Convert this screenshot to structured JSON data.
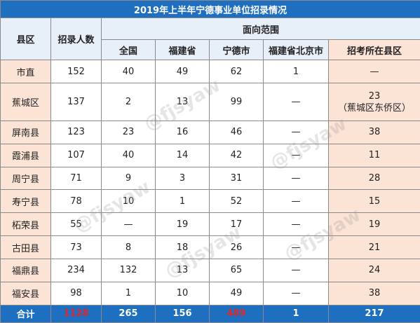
{
  "title": "2019年上半年宁德事业单位招录情况",
  "headers": {
    "region": "县区",
    "recruit": "招录人数",
    "range_group": "面向范围",
    "national": "全国",
    "fujian": "福建省",
    "ningde": "宁德市",
    "fujian_beijing": "福建省北京市",
    "exam_county": "招考所在县区"
  },
  "rows": [
    {
      "region": "市直",
      "recruit": "152",
      "national": "40",
      "fujian": "49",
      "ningde": "62",
      "fujian_beijing": "1",
      "exam_county": "—",
      "exam_note": ""
    },
    {
      "region": "蕉城区",
      "recruit": "137",
      "national": "2",
      "fujian": "13",
      "ningde": "99",
      "fujian_beijing": "—",
      "exam_county": "23",
      "exam_note": "（蕉城区东侨区）"
    },
    {
      "region": "屏南县",
      "recruit": "123",
      "national": "23",
      "fujian": "16",
      "ningde": "46",
      "fujian_beijing": "—",
      "exam_county": "38",
      "exam_note": ""
    },
    {
      "region": "霞浦县",
      "recruit": "107",
      "national": "40",
      "fujian": "14",
      "ningde": "42",
      "fujian_beijing": "—",
      "exam_county": "11",
      "exam_note": ""
    },
    {
      "region": "周宁县",
      "recruit": "71",
      "national": "9",
      "fujian": "3",
      "ningde": "31",
      "fujian_beijing": "—",
      "exam_county": "28",
      "exam_note": ""
    },
    {
      "region": "寿宁县",
      "recruit": "78",
      "national": "10",
      "fujian": "1",
      "ningde": "52",
      "fujian_beijing": "—",
      "exam_county": "15",
      "exam_note": ""
    },
    {
      "region": "柘荣县",
      "recruit": "55",
      "national": "—",
      "fujian": "19",
      "ningde": "17",
      "fujian_beijing": "—",
      "exam_county": "19",
      "exam_note": ""
    },
    {
      "region": "古田县",
      "recruit": "73",
      "national": "8",
      "fujian": "18",
      "ningde": "26",
      "fujian_beijing": "—",
      "exam_county": "21",
      "exam_note": ""
    },
    {
      "region": "福鼎县",
      "recruit": "234",
      "national": "132",
      "fujian": "13",
      "ningde": "65",
      "fujian_beijing": "—",
      "exam_county": "24",
      "exam_note": ""
    },
    {
      "region": "福安县",
      "recruit": "98",
      "national": "1",
      "fujian": "10",
      "ningde": "49",
      "fujian_beijing": "—",
      "exam_county": "38",
      "exam_note": ""
    }
  ],
  "total": {
    "label": "合计",
    "recruit": "1128",
    "national": "265",
    "fujian": "156",
    "ningde": "489",
    "fujian_beijing": "1",
    "exam_county": "217"
  },
  "watermark": "@fjsyaw",
  "colors": {
    "header_blue": "#1e6fbf",
    "header_light": "#e7eff9",
    "peach": "#fbe3d6",
    "total_red": "#e0262b"
  }
}
